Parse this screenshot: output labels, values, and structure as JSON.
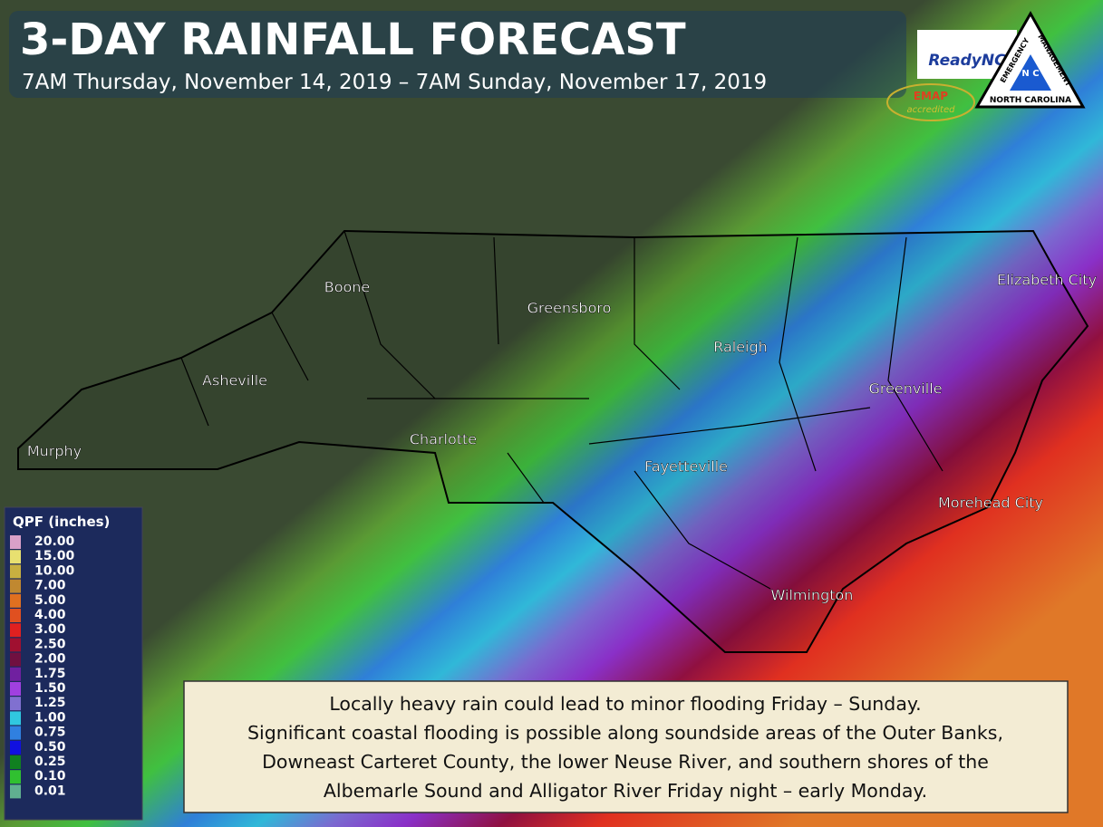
{
  "header": {
    "title": "3-DAY RAINFALL FORECAST",
    "subtitle": "7AM Thursday, November 14, 2019 – 7AM Sunday, November 17, 2019"
  },
  "logos": {
    "ready": "ReadyNC",
    "em_top": "EMERGENCY",
    "em_right": "MANAGEMENT",
    "em_bottom": "NORTH CAROLINA",
    "em_center": "N C",
    "emap": "EMAP",
    "emap_sub": "accredited"
  },
  "cities": [
    "Boone",
    "Greensboro",
    "Raleigh",
    "Elizabeth City",
    "Asheville",
    "Greenville",
    "Charlotte",
    "Murphy",
    "Fayetteville",
    "Morehead City",
    "Wilmington"
  ],
  "legend": {
    "title": "QPF (inches)",
    "items": [
      {
        "label": "20.00",
        "color": "#d9a0c8"
      },
      {
        "label": "15.00",
        "color": "#e8e070"
      },
      {
        "label": "10.00",
        "color": "#c8b040"
      },
      {
        "label": "7.00",
        "color": "#c08830"
      },
      {
        "label": "5.00",
        "color": "#e07020"
      },
      {
        "label": "4.00",
        "color": "#e05020"
      },
      {
        "label": "3.00",
        "color": "#e02020"
      },
      {
        "label": "2.50",
        "color": "#a01030"
      },
      {
        "label": "2.00",
        "color": "#701040"
      },
      {
        "label": "1.75",
        "color": "#7020a0"
      },
      {
        "label": "1.50",
        "color": "#a040e0"
      },
      {
        "label": "1.25",
        "color": "#8070d0"
      },
      {
        "label": "1.00",
        "color": "#30c8e0"
      },
      {
        "label": "0.75",
        "color": "#3080e0"
      },
      {
        "label": "0.50",
        "color": "#1010e0"
      },
      {
        "label": "0.25",
        "color": "#108020"
      },
      {
        "label": "0.10",
        "color": "#30c030"
      },
      {
        "label": "0.01",
        "color": "#60b090"
      }
    ]
  },
  "note": {
    "lines": [
      "Locally heavy rain could lead to minor flooding Friday – Sunday.",
      "Significant coastal flooding is possible along soundside areas of the Outer Banks,",
      "Downeast Carteret County, the lower Neuse River, and southern shores of the",
      "Albemarle Sound and Alligator River Friday night – early Monday."
    ]
  }
}
